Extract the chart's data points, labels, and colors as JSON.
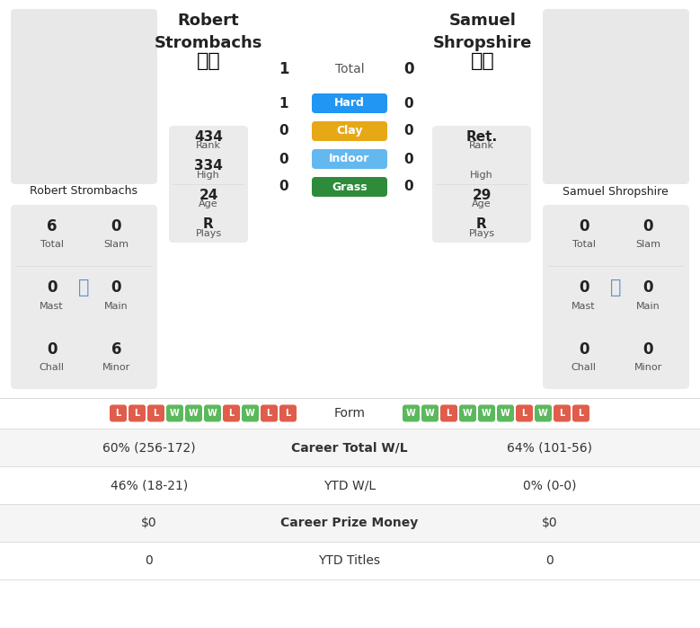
{
  "player1_name": "Robert\nStrombachs",
  "player2_name": "Samuel\nShropshire",
  "h2h_total": [
    1,
    0
  ],
  "h2h_hard": [
    1,
    0
  ],
  "h2h_clay": [
    0,
    0
  ],
  "h2h_indoor": [
    0,
    0
  ],
  "h2h_grass": [
    0,
    0
  ],
  "p1_rank": "434",
  "p1_rank_label": "Rank",
  "p1_high": "334",
  "p1_high_label": "High",
  "p1_age": "24",
  "p1_age_label": "Age",
  "p1_plays": "R",
  "p1_plays_label": "Plays",
  "p2_rank": "Ret.",
  "p2_rank_label": "Rank",
  "p2_high": "",
  "p2_high_label": "High",
  "p2_age": "29",
  "p2_age_label": "Age",
  "p2_plays": "R",
  "p2_plays_label": "Plays",
  "p1_total": "6",
  "p1_slam": "0",
  "p1_mast": "0",
  "p1_main": "0",
  "p1_chall": "0",
  "p1_minor": "6",
  "p2_total": "0",
  "p2_slam": "0",
  "p2_mast": "0",
  "p2_main": "0",
  "p2_chall": "0",
  "p2_minor": "0",
  "p1_form": [
    "L",
    "L",
    "L",
    "W",
    "W",
    "W",
    "L",
    "W",
    "L",
    "L"
  ],
  "p2_form": [
    "W",
    "W",
    "L",
    "W",
    "W",
    "W",
    "L",
    "W",
    "L",
    "L"
  ],
  "career_wl_label": "Career Total W/L",
  "p1_career_wl": "60% (256-172)",
  "p2_career_wl": "64% (101-56)",
  "ytd_wl_label": "YTD W/L",
  "p1_ytd_wl": "46% (18-21)",
  "p2_ytd_wl": "0% (0-0)",
  "prize_label": "Career Prize Money",
  "p1_prize": "$0",
  "p2_prize": "$0",
  "titles_label": "YTD Titles",
  "p1_titles": "0",
  "p2_titles": "0",
  "form_label": "Form",
  "bg_color": "#ffffff",
  "card_bg": "#ebebeb",
  "win_color": "#5cb85c",
  "loss_color": "#e05c4b",
  "hard_color": "#2196f3",
  "clay_color": "#e6a817",
  "indoor_color": "#64b8f0",
  "grass_color": "#2e8b3a",
  "row_alt_bg": "#f5f5f5",
  "divider_color": "#dddddd",
  "text_dark": "#222222",
  "text_mid": "#555555"
}
